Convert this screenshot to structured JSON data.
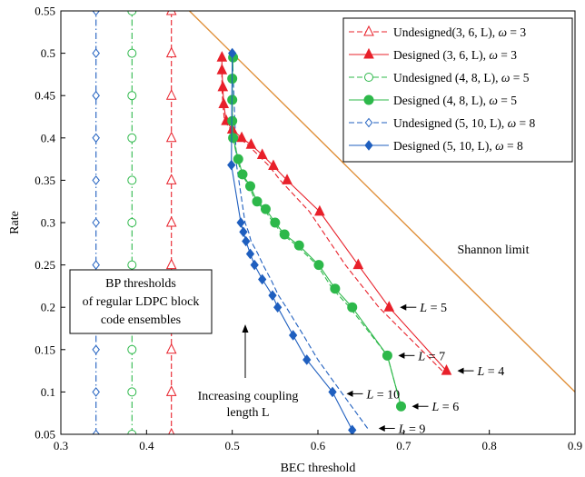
{
  "chart_data": {
    "type": "line",
    "xlabel": "BEC threshold",
    "ylabel": "Rate",
    "xlim": [
      0.3,
      0.9
    ],
    "ylim": [
      0.05,
      0.55
    ],
    "xticks": [
      "0.3",
      "0.4",
      "0.5",
      "0.6",
      "0.7",
      "0.8",
      "0.9"
    ],
    "yticks": [
      "0.05",
      "0.1",
      "0.15",
      "0.2",
      "0.25",
      "0.3",
      "0.35",
      "0.4",
      "0.45",
      "0.5",
      "0.55"
    ],
    "grid": false,
    "legend_position": "top-right",
    "series": [
      {
        "name": "Undesigned(3, 6, L),  ω = 3",
        "color": "#e8202a",
        "marker": "triangle",
        "filled": false,
        "dash": "dashed",
        "points": [
          [
            0.429,
            0.05
          ],
          [
            0.429,
            0.1
          ],
          [
            0.429,
            0.15
          ],
          [
            0.429,
            0.2
          ],
          [
            0.429,
            0.25
          ],
          [
            0.429,
            0.3
          ],
          [
            0.429,
            0.35
          ],
          [
            0.429,
            0.4
          ],
          [
            0.429,
            0.45
          ],
          [
            0.429,
            0.5
          ],
          [
            0.429,
            0.55
          ]
        ]
      },
      {
        "name": "Designed (3, 6, L),  ω = 3",
        "color": "#e8202a",
        "marker": "triangle",
        "filled": true,
        "dash": "solid",
        "points": [
          [
            0.75,
            0.125
          ],
          [
            0.683,
            0.2
          ],
          [
            0.647,
            0.25
          ],
          [
            0.602,
            0.313
          ],
          [
            0.564,
            0.35
          ],
          [
            0.548,
            0.367
          ],
          [
            0.535,
            0.38
          ],
          [
            0.522,
            0.392
          ],
          [
            0.511,
            0.4
          ],
          [
            0.5,
            0.41
          ],
          [
            0.493,
            0.42
          ],
          [
            0.49,
            0.44
          ],
          [
            0.489,
            0.46
          ],
          [
            0.488,
            0.48
          ],
          [
            0.488,
            0.495
          ]
        ]
      },
      {
        "name": "Undesigned (4, 8, L),  ω = 5",
        "color": "#2db84a",
        "marker": "circle",
        "filled": false,
        "dash": "dashdot",
        "points": [
          [
            0.383,
            0.05
          ],
          [
            0.383,
            0.1
          ],
          [
            0.383,
            0.15
          ],
          [
            0.383,
            0.2
          ],
          [
            0.383,
            0.25
          ],
          [
            0.383,
            0.3
          ],
          [
            0.383,
            0.35
          ],
          [
            0.383,
            0.4
          ],
          [
            0.383,
            0.45
          ],
          [
            0.383,
            0.5
          ],
          [
            0.383,
            0.55
          ]
        ]
      },
      {
        "name": "Designed (4, 8, L),  ω = 5",
        "color": "#2db84a",
        "marker": "circle",
        "filled": true,
        "dash": "solid",
        "points": [
          [
            0.697,
            0.083
          ],
          [
            0.681,
            0.143
          ],
          [
            0.64,
            0.2
          ],
          [
            0.62,
            0.222
          ],
          [
            0.601,
            0.25
          ],
          [
            0.578,
            0.273
          ],
          [
            0.561,
            0.286
          ],
          [
            0.55,
            0.3
          ],
          [
            0.539,
            0.316
          ],
          [
            0.529,
            0.325
          ],
          [
            0.521,
            0.343
          ],
          [
            0.512,
            0.357
          ],
          [
            0.507,
            0.375
          ],
          [
            0.501,
            0.4
          ],
          [
            0.5,
            0.42
          ],
          [
            0.5,
            0.445
          ],
          [
            0.5,
            0.47
          ],
          [
            0.501,
            0.495
          ]
        ]
      },
      {
        "name": "Undesigned (5, 10, L),  ω = 8",
        "color": "#1f5fbf",
        "marker": "diamond",
        "filled": false,
        "dash": "dashdot",
        "points": [
          [
            0.341,
            0.05
          ],
          [
            0.341,
            0.1
          ],
          [
            0.341,
            0.15
          ],
          [
            0.341,
            0.2
          ],
          [
            0.341,
            0.25
          ],
          [
            0.341,
            0.3
          ],
          [
            0.341,
            0.35
          ],
          [
            0.341,
            0.4
          ],
          [
            0.341,
            0.45
          ],
          [
            0.341,
            0.5
          ],
          [
            0.341,
            0.55
          ]
        ]
      },
      {
        "name": "Designed (5, 10, L),  ω = 8",
        "color": "#1f5fbf",
        "marker": "diamond",
        "filled": true,
        "dash": "solid",
        "points": [
          [
            0.64,
            0.055
          ],
          [
            0.617,
            0.1
          ],
          [
            0.587,
            0.138
          ],
          [
            0.571,
            0.167
          ],
          [
            0.553,
            0.2
          ],
          [
            0.547,
            0.214
          ],
          [
            0.535,
            0.233
          ],
          [
            0.526,
            0.25
          ],
          [
            0.521,
            0.263
          ],
          [
            0.516,
            0.278
          ],
          [
            0.513,
            0.289
          ],
          [
            0.51,
            0.3
          ],
          [
            0.499,
            0.368
          ],
          [
            0.5,
            0.5
          ]
        ]
      }
    ],
    "extra_lines": [
      {
        "name": "Shannon limit",
        "color": "#e0903a",
        "points": [
          [
            0.45,
            0.55
          ],
          [
            0.9,
            0.1
          ]
        ]
      },
      {
        "name": "Undesigned (5, 10, L) family",
        "color": "#1f5fbf",
        "dash": "dashed",
        "points": [
          [
            0.658,
            0.057
          ],
          [
            0.627,
            0.1
          ],
          [
            0.6,
            0.138
          ],
          [
            0.583,
            0.167
          ],
          [
            0.563,
            0.2
          ],
          [
            0.554,
            0.214
          ],
          [
            0.545,
            0.233
          ],
          [
            0.536,
            0.25
          ],
          [
            0.53,
            0.263
          ],
          [
            0.522,
            0.278
          ],
          [
            0.519,
            0.289
          ],
          [
            0.515,
            0.3
          ],
          [
            0.505,
            0.368
          ],
          [
            0.5,
            0.5
          ]
        ]
      },
      {
        "name": "Undesigned (4, 8, L) family",
        "color": "#2db84a",
        "dash": "dashed",
        "points": [
          [
            0.697,
            0.083
          ],
          [
            0.681,
            0.143
          ],
          [
            0.637,
            0.2
          ],
          [
            0.617,
            0.222
          ],
          [
            0.599,
            0.25
          ],
          [
            0.575,
            0.273
          ],
          [
            0.559,
            0.286
          ],
          [
            0.548,
            0.3
          ],
          [
            0.537,
            0.316
          ],
          [
            0.527,
            0.325
          ],
          [
            0.52,
            0.343
          ],
          [
            0.511,
            0.357
          ],
          [
            0.506,
            0.375
          ],
          [
            0.501,
            0.4
          ],
          [
            0.5,
            0.42
          ],
          [
            0.5,
            0.445
          ],
          [
            0.5,
            0.47
          ],
          [
            0.501,
            0.495
          ]
        ]
      },
      {
        "name": "Undesigned (3, 6, L) family",
        "color": "#e8202a",
        "dash": "dashed",
        "points": [
          [
            0.745,
            0.125
          ],
          [
            0.671,
            0.2
          ],
          [
            0.632,
            0.25
          ],
          [
            0.59,
            0.313
          ],
          [
            0.556,
            0.35
          ],
          [
            0.543,
            0.367
          ],
          [
            0.53,
            0.38
          ],
          [
            0.518,
            0.392
          ],
          [
            0.508,
            0.4
          ],
          [
            0.498,
            0.41
          ],
          [
            0.491,
            0.42
          ],
          [
            0.489,
            0.44
          ],
          [
            0.488,
            0.46
          ],
          [
            0.488,
            0.48
          ],
          [
            0.488,
            0.495
          ]
        ]
      }
    ],
    "annotations": {
      "shannon": "Shannon limit",
      "bp_box": [
        "BP thresholds",
        "of regular LDPC block",
        "code ensembles"
      ],
      "increasing": [
        "Increasing coupling",
        "length L"
      ],
      "L_labels": [
        {
          "text": "L = 5",
          "x": 0.683,
          "y": 0.2
        },
        {
          "text": "L = 7",
          "x": 0.681,
          "y": 0.143
        },
        {
          "text": "L = 4",
          "x": 0.75,
          "y": 0.125
        },
        {
          "text": "L = 10",
          "x": 0.627,
          "y": 0.1
        },
        {
          "text": "L = 6",
          "x": 0.697,
          "y": 0.083
        },
        {
          "text": "L = 9",
          "x": 0.658,
          "y": 0.057
        }
      ]
    }
  }
}
